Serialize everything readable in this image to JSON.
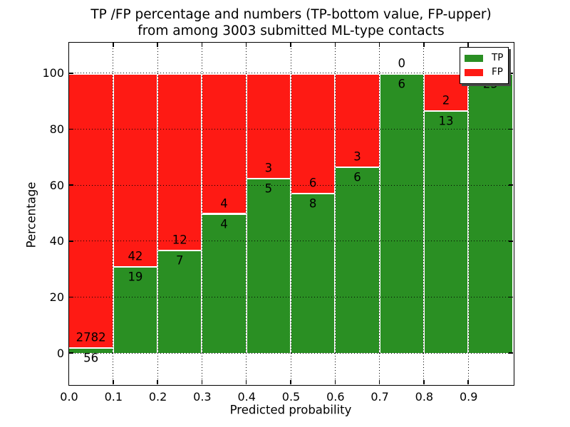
{
  "title_line1": "TP /FP percentage and numbers (TP-bottom value, FP-upper)",
  "title_line2": "from among 3003 submitted ML-type contacts",
  "chart_data": {
    "type": "bar",
    "stacked": true,
    "normalized": "each bin scaled to 100%, TP on bottom, FP on top",
    "title": "TP /FP percentage and numbers (TP-bottom value, FP-upper)\nfrom among 3003 submitted ML-type contacts",
    "xlabel": "Predicted probability",
    "ylabel": "Percentage",
    "total_contacts": 3003,
    "categories": [
      "0.0-0.1",
      "0.1-0.2",
      "0.2-0.3",
      "0.3-0.4",
      "0.4-0.5",
      "0.5-0.6",
      "0.6-0.7",
      "0.7-0.8",
      "0.8-0.9",
      "0.9-1.0"
    ],
    "series": [
      {
        "name": "TP",
        "color": "#2a8f23",
        "values": [
          56,
          19,
          7,
          4,
          5,
          8,
          6,
          6,
          13,
          25
        ]
      },
      {
        "name": "FP",
        "color": "#fe1a14",
        "values": [
          2782,
          42,
          12,
          4,
          3,
          6,
          3,
          0,
          2,
          0
        ]
      }
    ],
    "bar_edge_color": "#ffffff",
    "yticks": [
      0,
      20,
      40,
      60,
      80,
      100
    ],
    "xtick_labels": [
      "0.0",
      "0.1",
      "0.2",
      "0.3",
      "0.4",
      "0.5",
      "0.6",
      "0.7",
      "0.8",
      "0.9"
    ],
    "ylim": [
      -11,
      111
    ],
    "xlim": [
      0,
      1
    ],
    "bin_width": 0.1,
    "grid": "dotted both axes",
    "legend_position": "upper right"
  }
}
